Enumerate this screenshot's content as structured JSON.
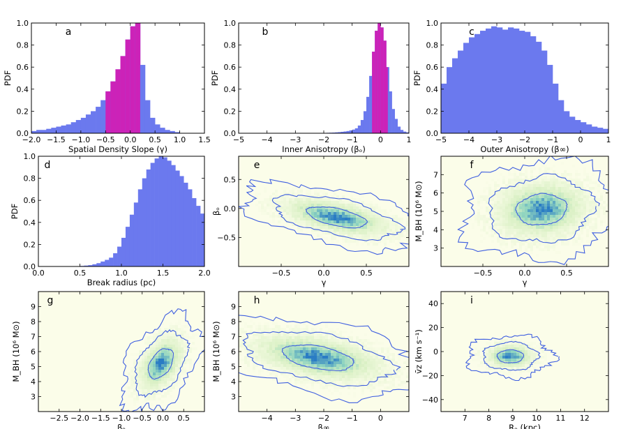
{
  "figure_title": "",
  "colors": {
    "hist_fill": "#6b79ee",
    "hist_highlight": "#cc22b8",
    "density_bg": "#fbfde9",
    "contour": "#3f5fe0",
    "density_low": "#d9f0c4",
    "density_mid": "#8fd4c0",
    "density_high": "#2a7cc4"
  },
  "chart_data": [
    {
      "panel": "a",
      "type": "bar",
      "subtype": "histogram",
      "xlabel": "Spatial Density Slope (γ)",
      "ylabel": "PDF",
      "xlim": [
        -2.0,
        1.5
      ],
      "ylim": [
        0.0,
        1.0
      ],
      "xticks": [
        "−2.0",
        "−1.5",
        "−1.0",
        "−0.5",
        "0.0",
        "0.5",
        "1.0",
        "1.5"
      ],
      "yticks": [
        "0.0",
        "0.2",
        "0.4",
        "0.6",
        "0.8",
        "1.0"
      ],
      "bin_edges": [
        -2.0,
        -1.9,
        -1.8,
        -1.7,
        -1.6,
        -1.5,
        -1.4,
        -1.3,
        -1.2,
        -1.1,
        -1.0,
        -0.9,
        -0.8,
        -0.7,
        -0.6,
        -0.5,
        -0.4,
        -0.3,
        -0.2,
        -0.1,
        0.0,
        0.1,
        0.2,
        0.3,
        0.4,
        0.5,
        0.6,
        0.7,
        0.8,
        0.9,
        1.0
      ],
      "values": [
        0.02,
        0.03,
        0.03,
        0.04,
        0.05,
        0.06,
        0.07,
        0.08,
        0.1,
        0.12,
        0.14,
        0.17,
        0.2,
        0.24,
        0.3,
        0.38,
        0.47,
        0.58,
        0.7,
        0.85,
        0.97,
        1.0,
        0.62,
        0.3,
        0.14,
        0.08,
        0.05,
        0.03,
        0.02,
        0.01
      ],
      "highlight_range": [
        -0.5,
        0.2
      ]
    },
    {
      "panel": "b",
      "type": "bar",
      "subtype": "histogram",
      "xlabel": "Inner Anisotropy (βₒ)",
      "ylabel": "PDF",
      "xlim": [
        -5,
        1
      ],
      "ylim": [
        0.0,
        1.0
      ],
      "xticks": [
        "−5",
        "−4",
        "−3",
        "−2",
        "−1",
        "0",
        "1"
      ],
      "yticks": [
        "0.0",
        "0.2",
        "0.4",
        "0.6",
        "0.8",
        "1.0"
      ],
      "bin_edges": [
        -2.0,
        -1.9,
        -1.8,
        -1.7,
        -1.6,
        -1.5,
        -1.4,
        -1.3,
        -1.2,
        -1.1,
        -1.0,
        -0.9,
        -0.8,
        -0.7,
        -0.6,
        -0.5,
        -0.4,
        -0.3,
        -0.2,
        -0.1,
        0.0,
        0.1,
        0.2,
        0.3,
        0.4,
        0.5,
        0.6,
        0.7,
        0.8,
        0.9,
        1.0
      ],
      "values": [
        0.003,
        0.004,
        0.005,
        0.006,
        0.008,
        0.01,
        0.013,
        0.016,
        0.02,
        0.026,
        0.033,
        0.045,
        0.07,
        0.12,
        0.2,
        0.33,
        0.52,
        0.74,
        0.93,
        1.0,
        0.96,
        0.84,
        0.6,
        0.38,
        0.22,
        0.13,
        0.06,
        0.03,
        0.015,
        0.008
      ],
      "highlight_range": [
        -0.3,
        0.25
      ]
    },
    {
      "panel": "c",
      "type": "bar",
      "subtype": "histogram",
      "xlabel": "Outer Anisotropy (β∞)",
      "ylabel": "PDF",
      "xlim": [
        -5,
        1
      ],
      "ylim": [
        0.0,
        1.0
      ],
      "xticks": [
        "−5",
        "−4",
        "−3",
        "−2",
        "−1",
        "0",
        "1"
      ],
      "yticks": [
        "0.0",
        "0.2",
        "0.4",
        "0.6",
        "0.8",
        "1.0"
      ],
      "bin_edges": [
        -5.0,
        -4.8,
        -4.6,
        -4.4,
        -4.2,
        -4.0,
        -3.8,
        -3.6,
        -3.4,
        -3.2,
        -3.0,
        -2.8,
        -2.6,
        -2.4,
        -2.2,
        -2.0,
        -1.8,
        -1.6,
        -1.4,
        -1.2,
        -1.0,
        -0.8,
        -0.6,
        -0.4,
        -0.2,
        0.0,
        0.2,
        0.4,
        0.6,
        0.8,
        1.0
      ],
      "values": [
        0.45,
        0.6,
        0.68,
        0.75,
        0.82,
        0.87,
        0.9,
        0.93,
        0.95,
        0.97,
        0.96,
        0.94,
        0.96,
        0.95,
        0.93,
        0.92,
        0.88,
        0.83,
        0.75,
        0.62,
        0.45,
        0.3,
        0.2,
        0.15,
        0.12,
        0.1,
        0.08,
        0.06,
        0.05,
        0.04
      ],
      "highlight_range": null
    },
    {
      "panel": "d",
      "type": "bar",
      "subtype": "histogram",
      "xlabel": "Break radius (pc)",
      "ylabel": "PDF",
      "xlim": [
        0.0,
        2.0
      ],
      "ylim": [
        0.0,
        1.0
      ],
      "xticks": [
        "0.0",
        "0.5",
        "1.0",
        "1.5",
        "2.0"
      ],
      "yticks": [
        "0.0",
        "0.2",
        "0.4",
        "0.6",
        "0.8",
        "1.0"
      ],
      "bin_edges": [
        0.5,
        0.55,
        0.6,
        0.65,
        0.7,
        0.75,
        0.8,
        0.85,
        0.9,
        0.95,
        1.0,
        1.05,
        1.1,
        1.15,
        1.2,
        1.25,
        1.3,
        1.35,
        1.4,
        1.45,
        1.5,
        1.55,
        1.6,
        1.65,
        1.7,
        1.75,
        1.8,
        1.85,
        1.9,
        1.95,
        2.0
      ],
      "values": [
        0.005,
        0.008,
        0.012,
        0.02,
        0.03,
        0.045,
        0.06,
        0.08,
        0.12,
        0.18,
        0.26,
        0.36,
        0.47,
        0.58,
        0.7,
        0.8,
        0.88,
        0.94,
        0.98,
        1.0,
        0.99,
        0.96,
        0.92,
        0.87,
        0.82,
        0.76,
        0.7,
        0.62,
        0.55,
        0.48
      ],
      "highlight_range": null
    },
    {
      "panel": "e",
      "type": "heatmap",
      "subtype": "density-contour",
      "xlabel": "γ",
      "ylabel": "βₒ",
      "xlim": [
        -1.0,
        1.0
      ],
      "ylim": [
        -1.0,
        0.9
      ],
      "xticks": [
        "−0.5",
        "0.0",
        "0.5"
      ],
      "xtick_values": [
        -0.5,
        0.0,
        0.5
      ],
      "yticks": [
        "−0.5",
        "0.0",
        "0.5"
      ],
      "ytick_values": [
        -0.5,
        0.0,
        0.5
      ],
      "center": [
        0.15,
        -0.15
      ],
      "spread": [
        0.35,
        0.18
      ],
      "correlation": -0.55
    },
    {
      "panel": "f",
      "type": "heatmap",
      "subtype": "density-contour",
      "xlabel": "γ",
      "ylabel": "M_BH (10⁶ M⊙)",
      "xlim": [
        -1.0,
        1.0
      ],
      "ylim": [
        2.0,
        8.0
      ],
      "xticks": [
        "−0.5",
        "0.0",
        "0.5"
      ],
      "xtick_values": [
        -0.5,
        0.0,
        0.5
      ],
      "yticks": [
        "3",
        "4",
        "5",
        "6",
        "7"
      ],
      "ytick_values": [
        3,
        4,
        5,
        6,
        7
      ],
      "center": [
        0.2,
        5.1
      ],
      "spread": [
        0.3,
        0.85
      ],
      "correlation": 0.1
    },
    {
      "panel": "g",
      "type": "heatmap",
      "subtype": "density-contour",
      "xlabel": "βₒ",
      "ylabel": "M_BH (10⁶ M⊙)",
      "xlim": [
        -3.0,
        1.0
      ],
      "ylim": [
        2.0,
        10.0
      ],
      "xticks": [
        "−2.5",
        "−2.0",
        "−1.5",
        "−1.0",
        "−0.5",
        "0.0",
        "0.5"
      ],
      "xtick_values": [
        -2.5,
        -2.0,
        -1.5,
        -1.0,
        -0.5,
        0.0,
        0.5
      ],
      "yticks": [
        "3",
        "4",
        "5",
        "6",
        "7",
        "8",
        "9"
      ],
      "ytick_values": [
        3,
        4,
        5,
        6,
        7,
        8,
        9
      ],
      "center": [
        -0.05,
        5.2
      ],
      "spread": [
        0.3,
        1.0
      ],
      "correlation": 0.45
    },
    {
      "panel": "h",
      "type": "heatmap",
      "subtype": "density-contour",
      "xlabel": "β∞",
      "ylabel": "M_BH (10⁶ M⊙)",
      "xlim": [
        -5.0,
        1.0
      ],
      "ylim": [
        2.0,
        10.0
      ],
      "xticks": [
        "−4",
        "−3",
        "−2",
        "−1",
        "0"
      ],
      "xtick_values": [
        -4,
        -3,
        -2,
        -1,
        0
      ],
      "yticks": [
        "3",
        "4",
        "5",
        "6",
        "7",
        "8",
        "9"
      ],
      "ytick_values": [
        3,
        4,
        5,
        6,
        7,
        8,
        9
      ],
      "center": [
        -2.2,
        5.6
      ],
      "spread": [
        1.25,
        0.85
      ],
      "correlation": -0.45
    },
    {
      "panel": "i",
      "type": "heatmap",
      "subtype": "density-contour",
      "xlabel": "Rₒ (kpc)",
      "ylabel": "v̄z (km s⁻¹)",
      "xlim": [
        6.0,
        13.0
      ],
      "ylim": [
        -50.0,
        50.0
      ],
      "xticks": [
        "7",
        "8",
        "9",
        "10",
        "11",
        "12"
      ],
      "xtick_values": [
        7,
        8,
        9,
        10,
        11,
        12
      ],
      "yticks": [
        "−40",
        "−20",
        "0",
        "20",
        "40"
      ],
      "ytick_values": [
        -40,
        -20,
        0,
        20,
        40
      ],
      "center": [
        8.9,
        -4.0
      ],
      "spread": [
        0.55,
        5.5
      ],
      "correlation": 0.0
    }
  ]
}
